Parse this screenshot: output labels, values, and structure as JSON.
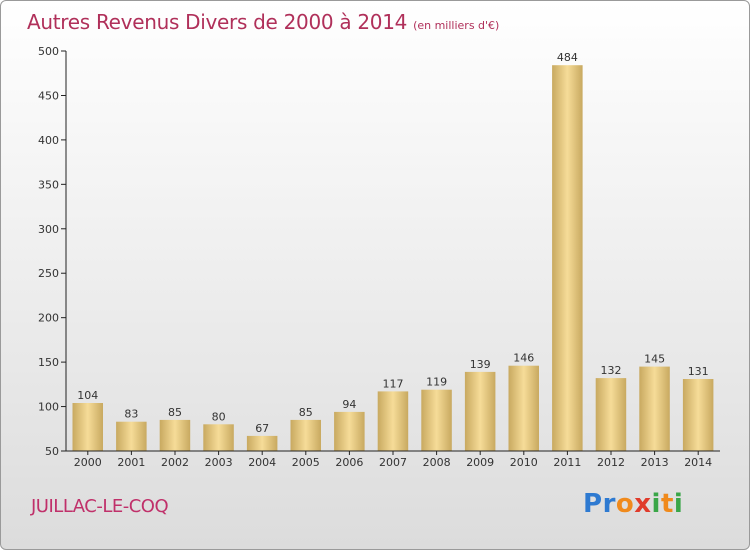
{
  "title": "Autres Revenus Divers de 2000 à 2014",
  "title_unit": "(en milliers d'€)",
  "commune": "JUILLAC-LE-COQ",
  "logo": {
    "letters": [
      {
        "ch": "P",
        "color": "#2e7ad1"
      },
      {
        "ch": "r",
        "color": "#2e7ad1"
      },
      {
        "ch": "o",
        "color": "#f08a1c"
      },
      {
        "ch": "x",
        "color": "#e03b2b"
      },
      {
        "ch": "i",
        "color": "#3aa648"
      },
      {
        "ch": "t",
        "color": "#f08a1c"
      },
      {
        "ch": "i",
        "color": "#3aa648"
      }
    ]
  },
  "colors": {
    "title": "#b0305a",
    "bar_light": "#f6dc98",
    "bar_dark": "#c8a960",
    "axis": "#222222"
  },
  "chart_data": {
    "type": "bar",
    "title": "Autres Revenus Divers de 2000 à 2014",
    "categories": [
      "2000",
      "2001",
      "2002",
      "2003",
      "2004",
      "2005",
      "2006",
      "2007",
      "2008",
      "2009",
      "2010",
      "2011",
      "2012",
      "2013",
      "2014"
    ],
    "values": [
      104,
      83,
      85,
      80,
      67,
      85,
      94,
      117,
      119,
      139,
      146,
      484,
      132,
      145,
      131
    ],
    "ylim": [
      50,
      500
    ],
    "yticks": [
      50,
      100,
      150,
      200,
      250,
      300,
      350,
      400,
      450,
      500
    ],
    "grid": false,
    "legend": "none"
  }
}
